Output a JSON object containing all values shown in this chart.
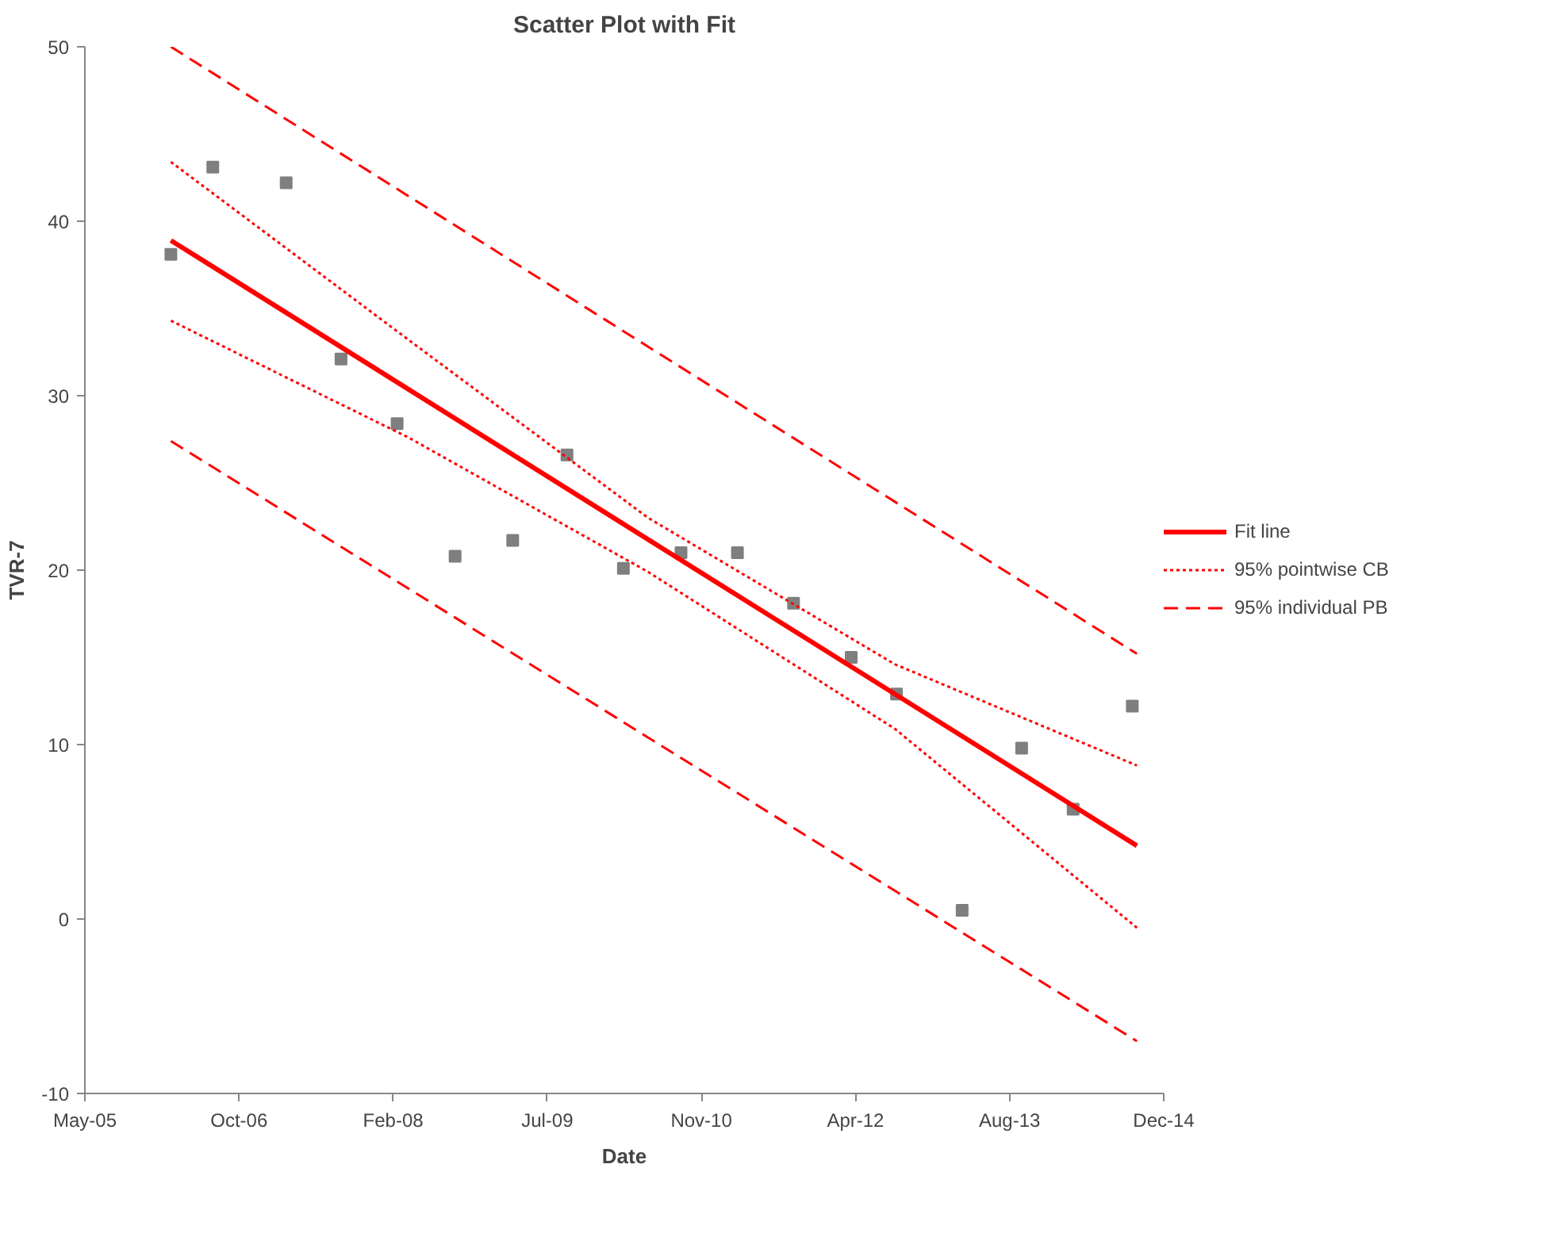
{
  "chart_data": {
    "type": "scatter",
    "title": "Scatter Plot with Fit",
    "xlabel": "Date",
    "ylabel": "TVR-7",
    "xlim": [
      "2005-05-31",
      "2014-12-30"
    ],
    "xticks": [
      {
        "value": "2005-05-31",
        "label": "May-05"
      },
      {
        "value": "2006-10-13",
        "label": "Oct-06"
      },
      {
        "value": "2008-02-25",
        "label": "Feb-08"
      },
      {
        "value": "2009-07-09",
        "label": "Jul-09"
      },
      {
        "value": "2010-11-21",
        "label": "Nov-10"
      },
      {
        "value": "2012-04-04",
        "label": "Apr-12"
      },
      {
        "value": "2013-08-17",
        "label": "Aug-13"
      },
      {
        "value": "2014-12-30",
        "label": "Dec-14"
      }
    ],
    "ylim": [
      -10,
      50
    ],
    "yticks": [
      -10,
      0,
      10,
      20,
      30,
      40,
      50
    ],
    "grid": false,
    "legend": "right",
    "series": [
      {
        "type": "scatter",
        "marker": "square",
        "color": "#7f7f7f",
        "x": [
          "2006-03-06",
          "2006-07-20",
          "2007-03-15",
          "2007-09-09",
          "2008-03-09",
          "2008-09-13",
          "2009-03-19",
          "2009-09-11",
          "2010-03-13",
          "2010-09-16",
          "2011-03-18",
          "2011-09-16",
          "2012-03-21",
          "2012-08-15",
          "2013-03-16",
          "2013-09-25",
          "2014-03-11",
          "2014-09-19"
        ],
        "values": [
          38.1,
          43.1,
          42.2,
          32.1,
          28.4,
          20.8,
          21.7,
          26.6,
          20.1,
          21.0,
          21.0,
          18.1,
          15.0,
          12.9,
          0.5,
          9.8,
          6.3,
          12.2
        ]
      },
      {
        "type": "line",
        "name": "Fit line",
        "color": "#ff0000",
        "line_style": "solid",
        "marker": "none",
        "x": [
          "2006-03-06",
          "2014-10-04"
        ],
        "values": [
          38.9,
          4.2
        ]
      },
      {
        "type": "line",
        "name": "95% pointwise CB",
        "color": "#ff0000",
        "line_style": "dotted",
        "marker": "none",
        "x": [
          "2006-03-06",
          "2008-04-15",
          "2010-06-01",
          "2012-08-10",
          "2014-10-04"
        ],
        "values": [
          43.4,
          33.2,
          23.0,
          14.6,
          8.8
        ]
      },
      {
        "type": "line",
        "color": "#ff0000",
        "line_style": "dotted",
        "marker": "none",
        "x": [
          "2006-03-06",
          "2008-04-15",
          "2010-06-01",
          "2012-08-10",
          "2014-10-04"
        ],
        "values": [
          34.3,
          27.6,
          19.9,
          10.9,
          -0.5
        ]
      },
      {
        "type": "line",
        "name": "95% individual PB",
        "color": "#ff0000",
        "line_style": "dashed",
        "marker": "none",
        "x": [
          "2006-03-06",
          "2014-10-04"
        ],
        "values": [
          50.0,
          15.2
        ]
      },
      {
        "type": "line",
        "color": "#ff0000",
        "line_style": "dashed",
        "marker": "none",
        "x": [
          "2006-03-06",
          "2014-10-04"
        ],
        "values": [
          27.4,
          -7.0
        ]
      }
    ]
  }
}
